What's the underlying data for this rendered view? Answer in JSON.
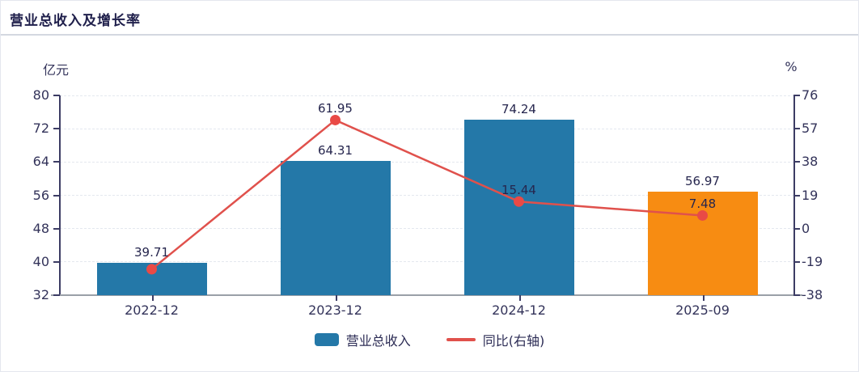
{
  "header": {
    "title": "营业总收入及增长率"
  },
  "axes": {
    "left_unit": "亿元",
    "right_unit": "%",
    "left_ticks": [
      "80",
      "72",
      "64",
      "56",
      "48",
      "40",
      "32"
    ],
    "right_ticks": [
      "76",
      "57",
      "38",
      "19",
      "0",
      "-19",
      "-38"
    ]
  },
  "legend": [
    {
      "label": "营业总收入"
    },
    {
      "label": "同比(右轴)"
    }
  ],
  "colors": {
    "bar_blue": "#2478a8",
    "bar_orange": "#f78c12",
    "line_red": "#e0514c",
    "dot_red": "#e94a46",
    "axis_line": "#3c3c64",
    "grid_line": "#e4e8ef",
    "text_navy": "#26264e"
  },
  "chart_data": {
    "type": "bar",
    "subtype": "bar+line combo with dual y-axes",
    "title": "营业总收入及增长率",
    "categories": [
      "2022-12",
      "2023-12",
      "2024-12",
      "2025-09"
    ],
    "series": [
      {
        "name": "营业总收入",
        "type": "bar",
        "axis": "left",
        "unit": "亿元",
        "values": [
          39.71,
          64.31,
          74.24,
          56.97
        ],
        "labels": [
          "39.71",
          "64.31",
          "74.24",
          "56.97"
        ],
        "bar_colors": [
          "#2478a8",
          "#2478a8",
          "#2478a8",
          "#f78c12"
        ]
      },
      {
        "name": "同比(右轴)",
        "type": "line",
        "axis": "right",
        "unit": "%",
        "values": [
          -23.2,
          61.95,
          15.44,
          7.48
        ],
        "labels": [
          "",
          "61.95",
          "15.44",
          "7.48"
        ],
        "note": "first point has no visible label; value estimated from plotted position",
        "color": "#e0514c"
      }
    ],
    "left_axis": {
      "min": 32,
      "max": 80,
      "ticks": [
        80,
        72,
        64,
        56,
        48,
        40,
        32
      ],
      "label": "亿元"
    },
    "right_axis": {
      "min": -38,
      "max": 76,
      "ticks": [
        76,
        57,
        38,
        19,
        0,
        -19,
        -38
      ],
      "label": "%"
    },
    "grid": true,
    "legend_position": "bottom"
  }
}
